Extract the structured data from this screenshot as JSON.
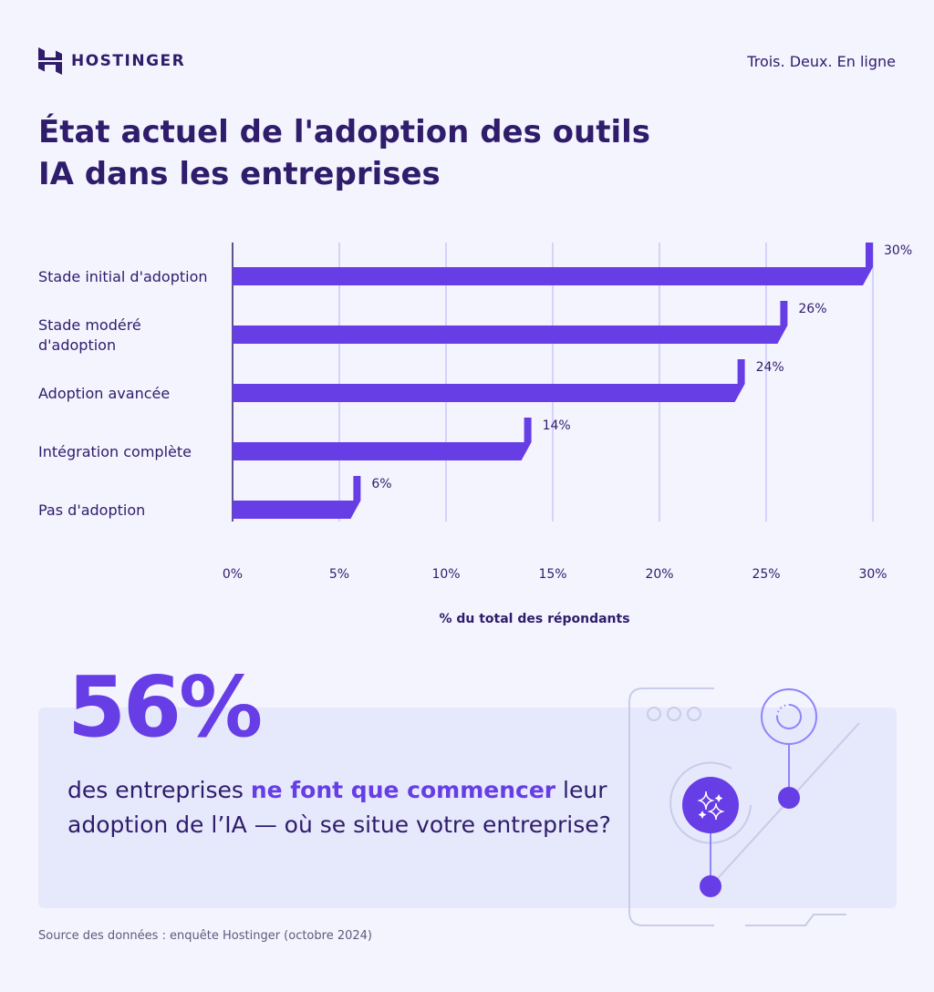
{
  "brand": {
    "name": "HOSTINGER",
    "tagline": "Trois. Deux. En ligne"
  },
  "title_line1": "État actuel de l'adoption des outils",
  "title_line2": "IA dans les entreprises",
  "chart_data": {
    "type": "bar",
    "orientation": "horizontal",
    "categories": [
      [
        "Stade initial d'adoption"
      ],
      [
        "Stade modéré",
        "d'adoption"
      ],
      [
        "Adoption avancée"
      ],
      [
        "Intégration complète"
      ],
      [
        "Pas d'adoption"
      ]
    ],
    "values": [
      30,
      26,
      24,
      14,
      6
    ],
    "value_labels": [
      "30%",
      "26%",
      "24%",
      "14%",
      "6%"
    ],
    "xlabel": "% du total des répondants",
    "xlim": [
      0,
      30
    ],
    "xticks": [
      0,
      5,
      10,
      15,
      20,
      25,
      30
    ],
    "xtick_labels": [
      "0%",
      "5%",
      "10%",
      "15%",
      "20%",
      "25%",
      "30%"
    ],
    "grid": true,
    "bar_color": "#673de6",
    "grid_color": "#d5d3fb"
  },
  "highlight": {
    "stat": "56%",
    "text_before": "des entreprises ",
    "text_highlight": "ne font que commencer",
    "text_after": " leur adoption de l’IA — où se situe votre entreprise?"
  },
  "source": "Source des données : enquête Hostinger (octobre 2024)",
  "colors": {
    "accent": "#673de6",
    "text": "#2f1c6a",
    "background": "#f4f4ff",
    "card": "#e6e8fc"
  }
}
